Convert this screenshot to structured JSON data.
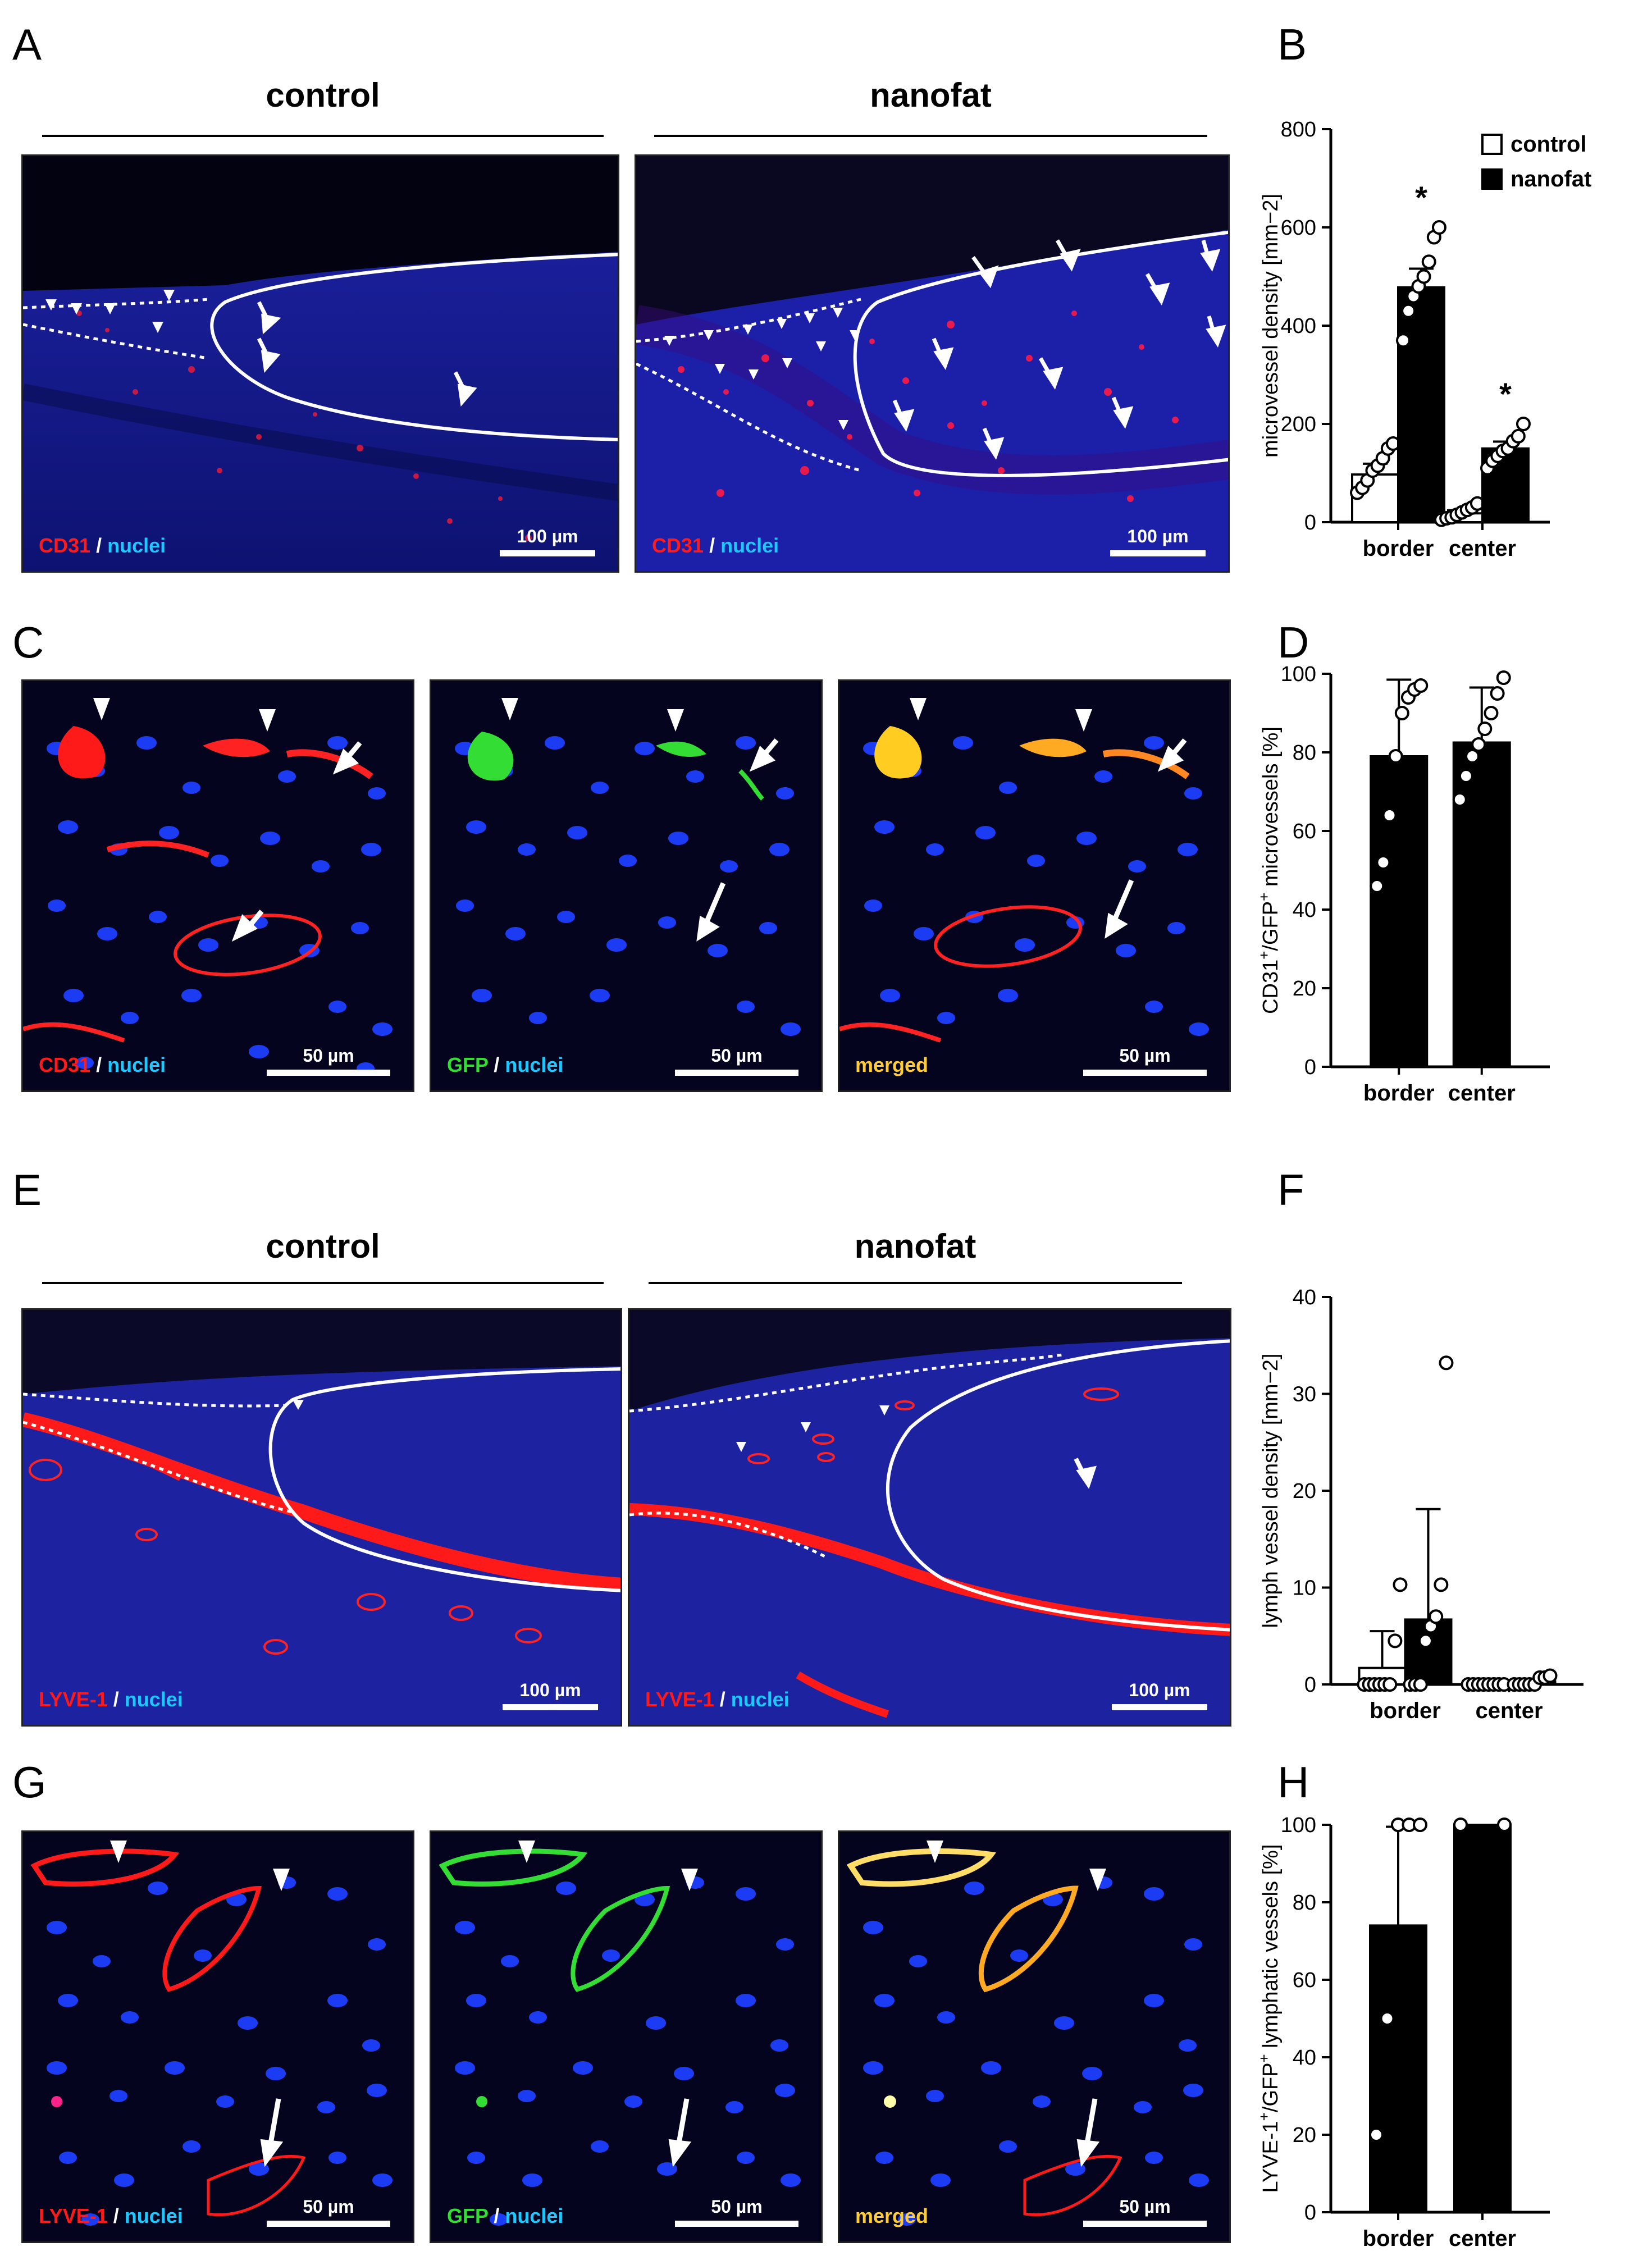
{
  "panel_labels": {
    "A": "A",
    "B": "B",
    "C": "C",
    "D": "D",
    "E": "E",
    "F": "F",
    "G": "G",
    "H": "H"
  },
  "groups": {
    "A_left": "control",
    "A_right": "nanofat",
    "E_left": "control",
    "E_right": "nanofat"
  },
  "captions": {
    "cd31": "CD31",
    "gfp": "GFP",
    "lyve1": "LYVE-1",
    "nuclei": "nuclei",
    "merged": "merged",
    "sep": "/"
  },
  "scalebars": {
    "s100": "100 µm",
    "s50": "50 µm"
  },
  "colors": {
    "red": "#ff1a1a",
    "green": "#33dd33",
    "blue": "#1e4bff",
    "merged": "#ffcc33",
    "tissue_blue": "#1a1f8c",
    "dark": "#05051a",
    "black": "#000000"
  },
  "chart_data": [
    {
      "id": "B",
      "type": "bar",
      "categories": [
        "border",
        "center"
      ],
      "ylabel": "microvessel density [mm−2]",
      "ylim": [
        0,
        800
      ],
      "yticks": [
        0,
        200,
        400,
        600,
        800
      ],
      "legend": {
        "position": "top-right",
        "entries": [
          "control",
          "nanofat"
        ]
      },
      "series": [
        {
          "name": "control",
          "fill": "#ffffff",
          "values": [
            97,
            18
          ],
          "error": [
            22,
            6
          ],
          "points": [
            [
              60,
              70,
              85,
              105,
              115,
              130,
              150,
              160
            ],
            [
              5,
              8,
              10,
              15,
              20,
              25,
              30,
              38
            ]
          ]
        },
        {
          "name": "nanofat",
          "fill": "#000000",
          "values": [
            478,
            150
          ],
          "error": [
            38,
            14
          ],
          "points": [
            [
              370,
              430,
              460,
              480,
              500,
              530,
              580,
              600
            ],
            [
              110,
              125,
              135,
              145,
              150,
              165,
              175,
              200
            ]
          ]
        }
      ],
      "annotations": [
        {
          "category": "border",
          "series": "nanofat",
          "text": "*"
        },
        {
          "category": "center",
          "series": "nanofat",
          "text": "*"
        }
      ]
    },
    {
      "id": "D",
      "type": "bar",
      "categories": [
        "border",
        "center"
      ],
      "ylabel": "CD31+/GFP+ microvessels [%]",
      "ylabel_parts": [
        "CD31",
        "+",
        "/GFP",
        "+",
        " microvessels [%]"
      ],
      "ylim": [
        0,
        100
      ],
      "yticks": [
        0,
        20,
        40,
        60,
        80,
        100
      ],
      "series": [
        {
          "name": "",
          "fill": "#000000",
          "values": [
            79,
            82.5
          ],
          "error": [
            19.5,
            14
          ],
          "points": [
            [
              46,
              52,
              64,
              79,
              90,
              94,
              96,
              97
            ],
            [
              68,
              74,
              79,
              82,
              86,
              90,
              95,
              99
            ]
          ]
        }
      ]
    },
    {
      "id": "F",
      "type": "bar",
      "categories": [
        "border",
        "center"
      ],
      "ylabel": "lymph vessel density [mm−2]",
      "ylim": [
        0,
        40
      ],
      "yticks": [
        0,
        10,
        20,
        30,
        40
      ],
      "series": [
        {
          "name": "control",
          "fill": "#ffffff",
          "values": [
            1.7,
            0
          ],
          "error": [
            3.8,
            0
          ],
          "points": [
            [
              0,
              0,
              0,
              0,
              0,
              0,
              4.5,
              10.3
            ],
            [
              0,
              0,
              0,
              0,
              0,
              0,
              0,
              0
            ]
          ]
        },
        {
          "name": "nanofat",
          "fill": "#000000",
          "values": [
            6.7,
            0.3
          ],
          "error": [
            11.4,
            0
          ],
          "points": [
            [
              0,
              0,
              0,
              4.5,
              6,
              7,
              10.3,
              33.2
            ],
            [
              0,
              0,
              0,
              0,
              0,
              0.7,
              0.7,
              0.9
            ]
          ]
        }
      ]
    },
    {
      "id": "H",
      "type": "bar",
      "categories": [
        "border",
        "center"
      ],
      "ylabel": "LYVE-1+/GFP+ lymphatic vessels [%]",
      "ylabel_parts": [
        "LYVE-1",
        "+",
        "/GFP",
        "+",
        " lymphatic vessels [%]"
      ],
      "ylim": [
        0,
        100
      ],
      "yticks": [
        0,
        20,
        40,
        60,
        80,
        100
      ],
      "series": [
        {
          "name": "",
          "fill": "#000000",
          "values": [
            74,
            100
          ],
          "error": [
            25.5,
            0
          ],
          "points": [
            [
              20,
              50,
              100,
              100,
              100
            ],
            [
              100,
              100
            ]
          ]
        }
      ]
    }
  ]
}
